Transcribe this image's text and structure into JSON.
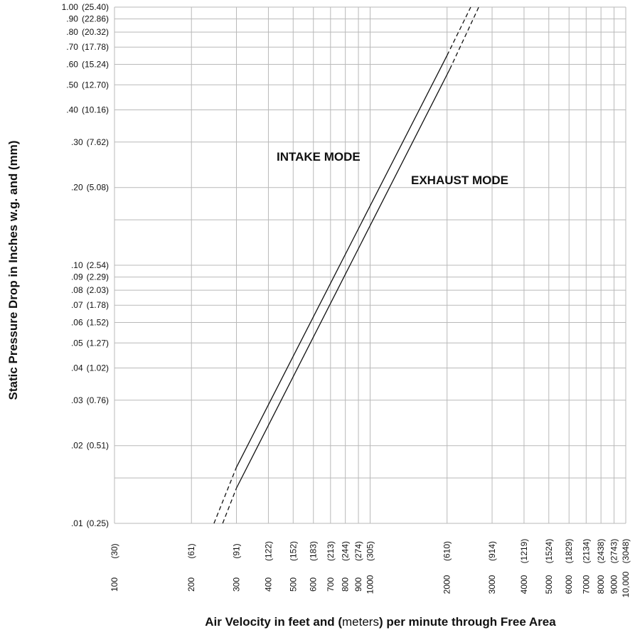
{
  "chart_data": {
    "type": "line",
    "xscale": "log",
    "yscale": "log",
    "xlim": [
      100,
      10000
    ],
    "ylim": [
      0.01,
      1.0
    ],
    "grid": true,
    "ylabel": "Static Pressure Drop in Inches w.g. and (mm)",
    "xlabel": {
      "before": "Air Velocity in feet and (",
      "unit": "meters",
      "after": ") per minute through Free Area"
    },
    "x_ticks": [
      {
        "value": 100,
        "label": "100",
        "metric": "(30)"
      },
      {
        "value": 200,
        "label": "200",
        "metric": "(61)"
      },
      {
        "value": 300,
        "label": "300",
        "metric": "(91)"
      },
      {
        "value": 400,
        "label": "400",
        "metric": "(122)"
      },
      {
        "value": 500,
        "label": "500",
        "metric": "(152)"
      },
      {
        "value": 600,
        "label": "600",
        "metric": "(183)"
      },
      {
        "value": 700,
        "label": "700",
        "metric": "(213)"
      },
      {
        "value": 800,
        "label": "800",
        "metric": "(244)"
      },
      {
        "value": 900,
        "label": "900",
        "metric": "(274)"
      },
      {
        "value": 1000,
        "label": "1000",
        "metric": "(305)"
      },
      {
        "value": 2000,
        "label": "2000",
        "metric": "(610)"
      },
      {
        "value": 3000,
        "label": "3000",
        "metric": "(914)"
      },
      {
        "value": 4000,
        "label": "4000",
        "metric": "(1219)"
      },
      {
        "value": 5000,
        "label": "5000",
        "metric": "(1524)"
      },
      {
        "value": 6000,
        "label": "6000",
        "metric": "(1829)"
      },
      {
        "value": 7000,
        "label": "7000",
        "metric": "(2134)"
      },
      {
        "value": 8000,
        "label": "8000",
        "metric": "(2438)"
      },
      {
        "value": 9000,
        "label": "9000",
        "metric": "(2743)"
      },
      {
        "value": 10000,
        "label": "10,000",
        "metric": "(3048)"
      }
    ],
    "y_ticks": [
      {
        "value": 1.0,
        "label": "1.00",
        "metric": "(25.40)"
      },
      {
        "value": 0.9,
        "label": ".90",
        "metric": "(22.86)"
      },
      {
        "value": 0.8,
        "label": ".80",
        "metric": "(20.32)"
      },
      {
        "value": 0.7,
        "label": ".70",
        "metric": "(17.78)"
      },
      {
        "value": 0.6,
        "label": ".60",
        "metric": "(15.24)"
      },
      {
        "value": 0.5,
        "label": ".50",
        "metric": "(12.70)"
      },
      {
        "value": 0.4,
        "label": ".40",
        "metric": "(10.16)"
      },
      {
        "value": 0.3,
        "label": ".30",
        "metric": "(7.62)"
      },
      {
        "value": 0.2,
        "label": ".20",
        "metric": "(5.08)"
      },
      {
        "value": 0.15,
        "label": "",
        "metric": ""
      },
      {
        "value": 0.1,
        "label": ".10",
        "metric": "(2.54)"
      },
      {
        "value": 0.09,
        "label": ".09",
        "metric": "(2.29)"
      },
      {
        "value": 0.08,
        "label": ".08",
        "metric": "(2.03)"
      },
      {
        "value": 0.07,
        "label": ".07",
        "metric": "(1.78)"
      },
      {
        "value": 0.06,
        "label": ".06",
        "metric": "(1.52)"
      },
      {
        "value": 0.05,
        "label": ".05",
        "metric": "(1.27)"
      },
      {
        "value": 0.04,
        "label": ".04",
        "metric": "(1.02)"
      },
      {
        "value": 0.03,
        "label": ".03",
        "metric": "(0.76)"
      },
      {
        "value": 0.02,
        "label": ".02",
        "metric": "(0.51)"
      },
      {
        "value": 0.015,
        "label": "",
        "metric": ""
      },
      {
        "value": 0.01,
        "label": ".01",
        "metric": "(0.25)"
      }
    ],
    "series": [
      {
        "name": "INTAKE MODE",
        "solid": [
          [
            300,
            0.0165
          ],
          [
            2000,
            0.65
          ]
        ],
        "dashed_low": [
          [
            245,
            0.01
          ],
          [
            300,
            0.0165
          ]
        ],
        "dashed_high": [
          [
            2000,
            0.65
          ],
          [
            2475,
            1.0
          ]
        ]
      },
      {
        "name": "EXHAUST MODE",
        "solid": [
          [
            300,
            0.0137
          ],
          [
            2050,
            0.575
          ]
        ],
        "dashed_low": [
          [
            265,
            0.01
          ],
          [
            300,
            0.0137
          ]
        ],
        "dashed_high": [
          [
            2050,
            0.575
          ],
          [
            2660,
            1.0
          ]
        ]
      }
    ]
  },
  "colors": {
    "grid": "#b9b9b9",
    "line": "#111111",
    "text": "#111111"
  }
}
